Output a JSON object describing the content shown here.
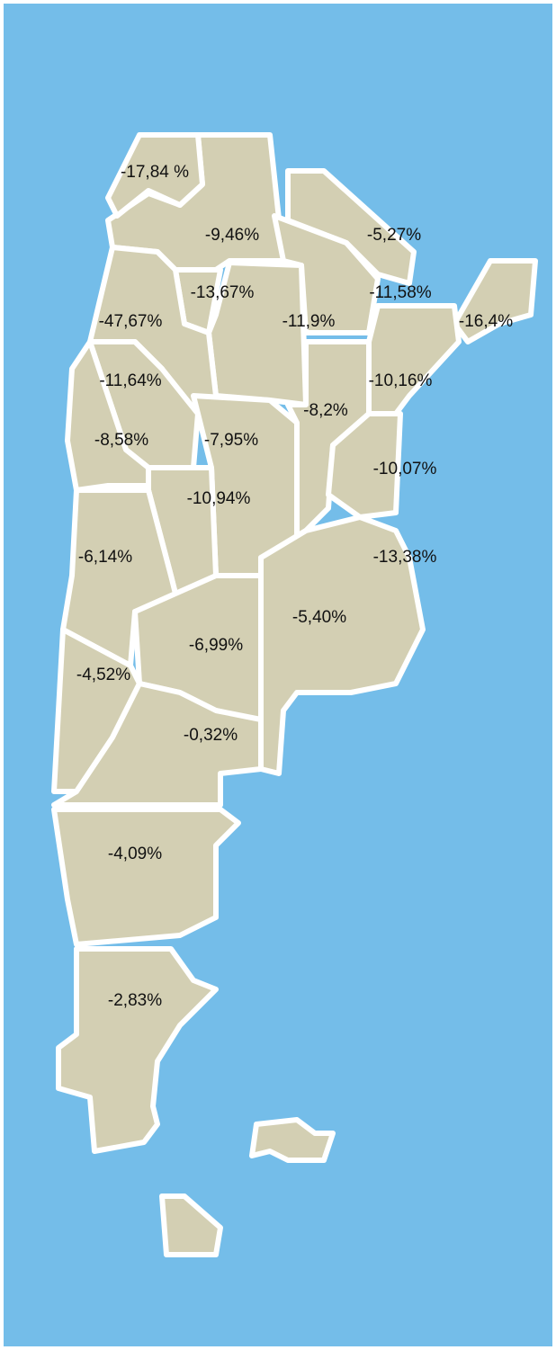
{
  "map": {
    "labels": [
      "-17,84 %",
      "-9,46%",
      "-5,27%",
      "-13,67%",
      "-11,58%",
      "-16,4%",
      "-47,67%",
      "-11,9%",
      "-11,64%",
      "-10,16%",
      "-8,2%",
      "-8,58%",
      "-7,95%",
      "-10,07%",
      "-10,94%",
      "-6,14%",
      "-13,38%",
      "-5,40%",
      "-6,99%",
      "-4,52%",
      "-0,32%",
      "-4,09%",
      "-2,83%"
    ]
  }
}
